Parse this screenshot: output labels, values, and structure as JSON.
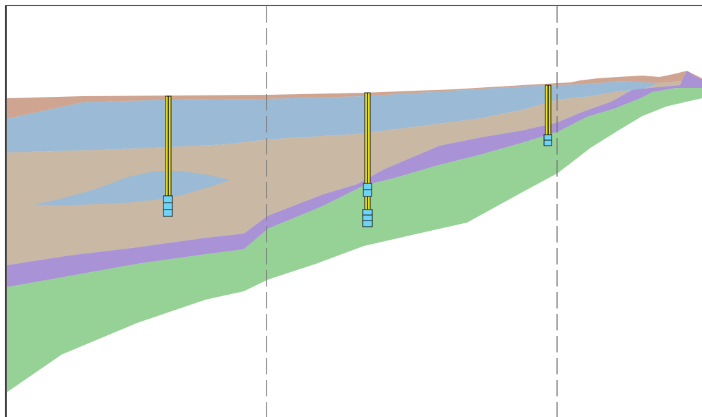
{
  "diagram": {
    "type": "geologic-cross-section",
    "layers": [
      {
        "id": "topsoil",
        "color": "#cfa592"
      },
      {
        "id": "upper-aquifer",
        "color": "#9bbad6"
      },
      {
        "id": "clay",
        "color": "#c8b8a4"
      },
      {
        "id": "lens-aquifer",
        "color": "#9bbad6"
      },
      {
        "id": "purple-unit",
        "color": "#a993d6"
      },
      {
        "id": "bedrock",
        "color": "#96d296"
      }
    ],
    "wells": [
      {
        "id": "well-1",
        "screens": 1
      },
      {
        "id": "well-2",
        "screens": 2
      },
      {
        "id": "well-3",
        "screens": 1
      }
    ],
    "well_colors": {
      "casing": "#e8e020",
      "stripe": "#111111",
      "screen": "#6fd3f5"
    },
    "section_lines": 2,
    "line_color": "#7a7a7a"
  }
}
